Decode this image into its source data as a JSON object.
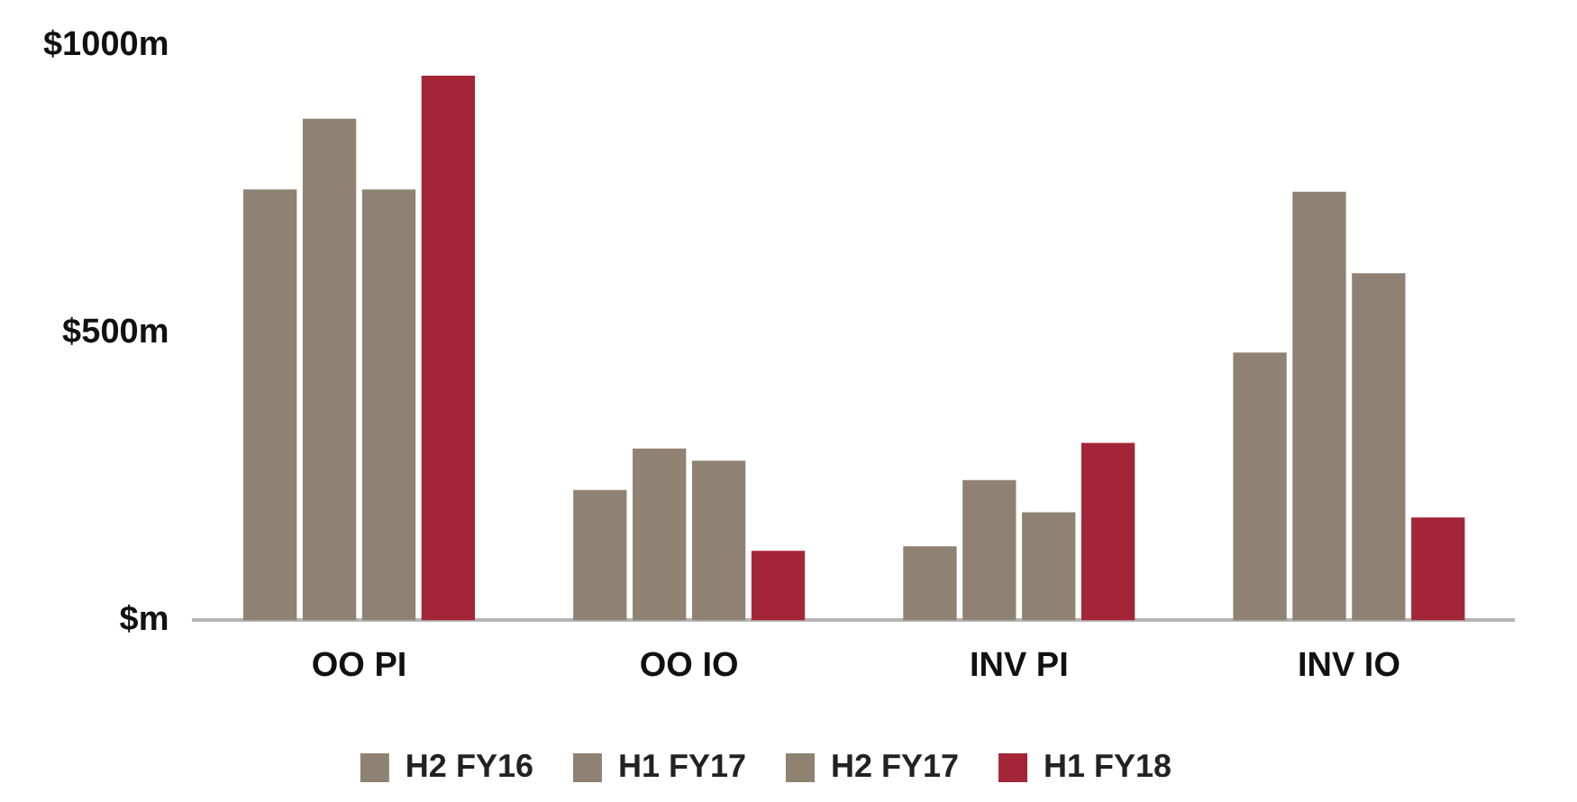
{
  "chart_data": {
    "type": "bar",
    "categories": [
      "OO PI",
      "OO IO",
      "INV PI",
      "INV IO"
    ],
    "series": [
      {
        "name": "H2 FY16",
        "color": "#8f8272",
        "values": [
          750,
          227,
          129,
          466
        ]
      },
      {
        "name": "H1 FY17",
        "color": "#8f8272",
        "values": [
          873,
          299,
          244,
          746
        ]
      },
      {
        "name": "H2 FY17",
        "color": "#8f8272",
        "values": [
          750,
          278,
          188,
          604
        ]
      },
      {
        "name": "H1 FY18",
        "color": "#a32537",
        "values": [
          948,
          121,
          309,
          179
        ]
      }
    ],
    "ylim": [
      0,
      1000
    ],
    "yticks": [
      {
        "value": 0,
        "label": "$m"
      },
      {
        "value": 500,
        "label": "$500m"
      },
      {
        "value": 1000,
        "label": "$1000m"
      }
    ],
    "grid": false,
    "legend": "bottom"
  }
}
